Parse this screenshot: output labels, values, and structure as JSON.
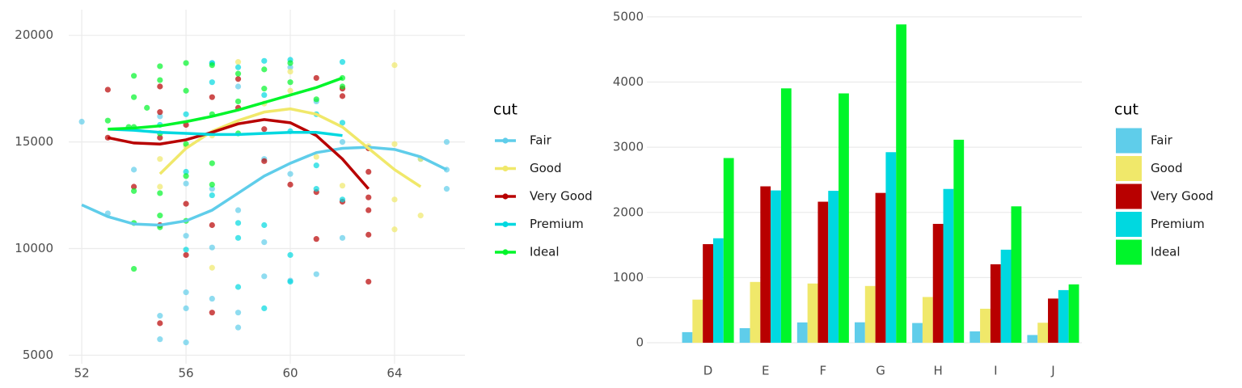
{
  "chart_data": [
    {
      "type": "scatter",
      "legend_title": "cut",
      "grid": "both",
      "xlim": [
        51.5,
        66.7
      ],
      "ylim": [
        4600,
        21200
      ],
      "xticks": [
        52,
        56,
        60,
        64
      ],
      "yticks": [
        5000,
        10000,
        15000,
        20000
      ],
      "series": [
        {
          "name": "Fair",
          "color": "#5fcdea",
          "x": [
            52,
            53,
            54,
            55,
            55,
            55,
            56,
            56,
            56,
            56,
            56,
            57,
            57,
            57,
            57,
            58,
            58,
            58,
            58,
            59,
            59,
            59,
            60,
            60,
            60,
            61,
            61,
            62,
            62,
            65,
            66,
            66,
            66
          ],
          "values": [
            15950,
            11650,
            13700,
            6850,
            5750,
            16200,
            5600,
            7200,
            7950,
            10600,
            13050,
            7650,
            10050,
            18700,
            12800,
            6300,
            7000,
            11800,
            17600,
            8700,
            10300,
            14200,
            8500,
            18500,
            13500,
            8800,
            16900,
            10500,
            15000,
            14200,
            15000,
            12800,
            13700
          ],
          "smooth_x": [
            52,
            53,
            54,
            55,
            56,
            57,
            58,
            59,
            60,
            61,
            62,
            63,
            64,
            65,
            66
          ],
          "smooth_values": [
            12050,
            11500,
            11150,
            11100,
            11300,
            11800,
            12600,
            13400,
            14000,
            14500,
            14700,
            14750,
            14650,
            14300,
            13700
          ]
        },
        {
          "name": "Good",
          "color": "#f0e86a",
          "x": [
            55,
            55,
            56,
            57,
            57,
            58,
            59,
            60,
            60,
            61,
            62,
            63,
            64,
            64,
            64,
            64,
            65,
            65
          ],
          "values": [
            14200,
            12900,
            14800,
            9100,
            15300,
            18750,
            16800,
            18300,
            17400,
            14300,
            12950,
            14800,
            18600,
            14900,
            12300,
            10900,
            11550,
            14200
          ],
          "smooth_x": [
            55,
            56,
            57,
            58,
            59,
            60,
            61,
            62,
            63,
            64,
            65
          ],
          "smooth_values": [
            13500,
            14700,
            15500,
            16000,
            16400,
            16550,
            16300,
            15700,
            14700,
            13700,
            12900
          ]
        },
        {
          "name": "Very Good",
          "color": "#b80000",
          "x": [
            53,
            53,
            54,
            55,
            55,
            55,
            55,
            55,
            56,
            56,
            56,
            57,
            57,
            57,
            58,
            58,
            59,
            59,
            60,
            61,
            61,
            61,
            62,
            62,
            62,
            63,
            63,
            63,
            63,
            63,
            63
          ],
          "values": [
            17450,
            15200,
            12900,
            6500,
            16400,
            17600,
            15200,
            11100,
            9700,
            12100,
            15800,
            7000,
            11100,
            17100,
            16600,
            17950,
            15600,
            14100,
            13000,
            10450,
            18000,
            12650,
            17500,
            17150,
            12200,
            13600,
            12400,
            11800,
            10650,
            8450,
            14700
          ],
          "smooth_x": [
            53,
            54,
            55,
            56,
            57,
            58,
            59,
            60,
            61,
            62,
            63
          ],
          "smooth_values": [
            15200,
            14950,
            14900,
            15100,
            15450,
            15850,
            16050,
            15900,
            15300,
            14200,
            12800
          ]
        },
        {
          "name": "Premium",
          "color": "#00d8e0",
          "x": [
            55,
            56,
            56,
            56,
            57,
            57,
            57,
            58,
            58,
            58,
            58,
            59,
            59,
            59,
            59,
            60,
            60,
            60,
            60,
            61,
            61,
            61,
            62,
            62,
            62
          ],
          "values": [
            15800,
            9950,
            13600,
            16300,
            18700,
            17800,
            12500,
            18500,
            11200,
            10500,
            8200,
            18800,
            17200,
            11100,
            7200,
            18850,
            9700,
            8450,
            15500,
            16300,
            12800,
            13900,
            18750,
            12300,
            15900
          ],
          "smooth_x": [
            53,
            54,
            55,
            56,
            57,
            58,
            59,
            60,
            61,
            62
          ],
          "smooth_values": [
            15600,
            15550,
            15450,
            15400,
            15350,
            15350,
            15400,
            15450,
            15450,
            15300
          ]
        },
        {
          "name": "Ideal",
          "color": "#00f52a",
          "x": [
            53,
            54,
            54,
            54,
            54,
            54,
            54,
            55,
            55,
            55,
            55,
            55,
            55,
            56,
            56,
            56,
            56,
            56,
            57,
            57,
            57,
            57,
            58,
            58,
            58,
            59,
            59,
            60,
            60,
            61,
            62,
            62,
            54.5,
            53.8
          ],
          "values": [
            16000,
            18100,
            17100,
            15700,
            12700,
            11200,
            9050,
            18550,
            17900,
            15400,
            12600,
            11550,
            11000,
            18700,
            17400,
            14900,
            13400,
            11300,
            18600,
            16300,
            14000,
            13000,
            18200,
            16900,
            15400,
            18400,
            17500,
            18700,
            17800,
            17000,
            18000,
            17600,
            16600,
            15700
          ],
          "smooth_x": [
            53,
            54,
            55,
            56,
            57,
            58,
            59,
            60,
            61,
            62
          ],
          "smooth_values": [
            15600,
            15650,
            15750,
            15950,
            16200,
            16500,
            16850,
            17200,
            17550,
            18000
          ]
        }
      ]
    },
    {
      "type": "bar",
      "legend_title": "cut",
      "grid": "y",
      "categories": [
        "D",
        "E",
        "F",
        "G",
        "H",
        "I",
        "J"
      ],
      "ylim": [
        -260,
        5110
      ],
      "yticks": [
        0,
        1000,
        2000,
        3000,
        4000,
        5000
      ],
      "series": [
        {
          "name": "Fair",
          "color": "#5fcdea",
          "values": [
            163,
            224,
            312,
            314,
            303,
            175,
            119
          ]
        },
        {
          "name": "Good",
          "color": "#f0e86a",
          "values": [
            662,
            933,
            909,
            871,
            702,
            522,
            307
          ]
        },
        {
          "name": "Very Good",
          "color": "#b80000",
          "values": [
            1513,
            2400,
            2164,
            2299,
            1824,
            1204,
            678
          ]
        },
        {
          "name": "Premium",
          "color": "#00d8e0",
          "values": [
            1603,
            2337,
            2331,
            2924,
            2360,
            1428,
            808
          ]
        },
        {
          "name": "Ideal",
          "color": "#00f52a",
          "values": [
            2834,
            3903,
            3826,
            4884,
            3115,
            2093,
            896
          ]
        }
      ]
    }
  ]
}
